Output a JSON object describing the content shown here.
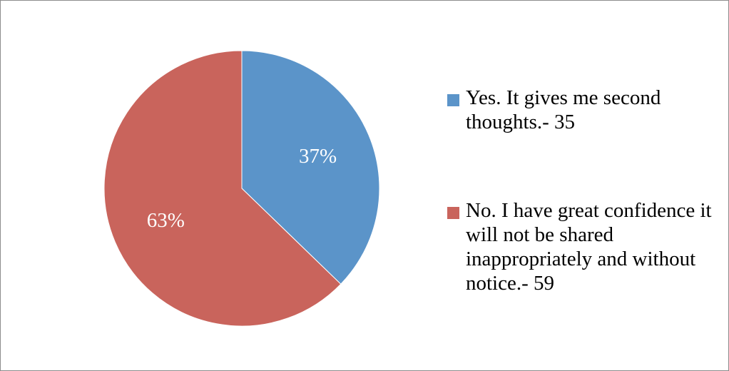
{
  "chart_data": {
    "type": "pie",
    "title": "",
    "slices": [
      {
        "label": "Yes. It gives me second thoughts.- 35",
        "value": 35,
        "percent_label": "37%",
        "color": "#5B94C9"
      },
      {
        "label": "No. I have great confidence it will not be shared inappropriately and without notice.- 59",
        "value": 59,
        "percent_label": "63%",
        "color": "#C9645C"
      }
    ],
    "legend_position": "right",
    "start_angle_deg": 0,
    "direction": "clockwise"
  }
}
